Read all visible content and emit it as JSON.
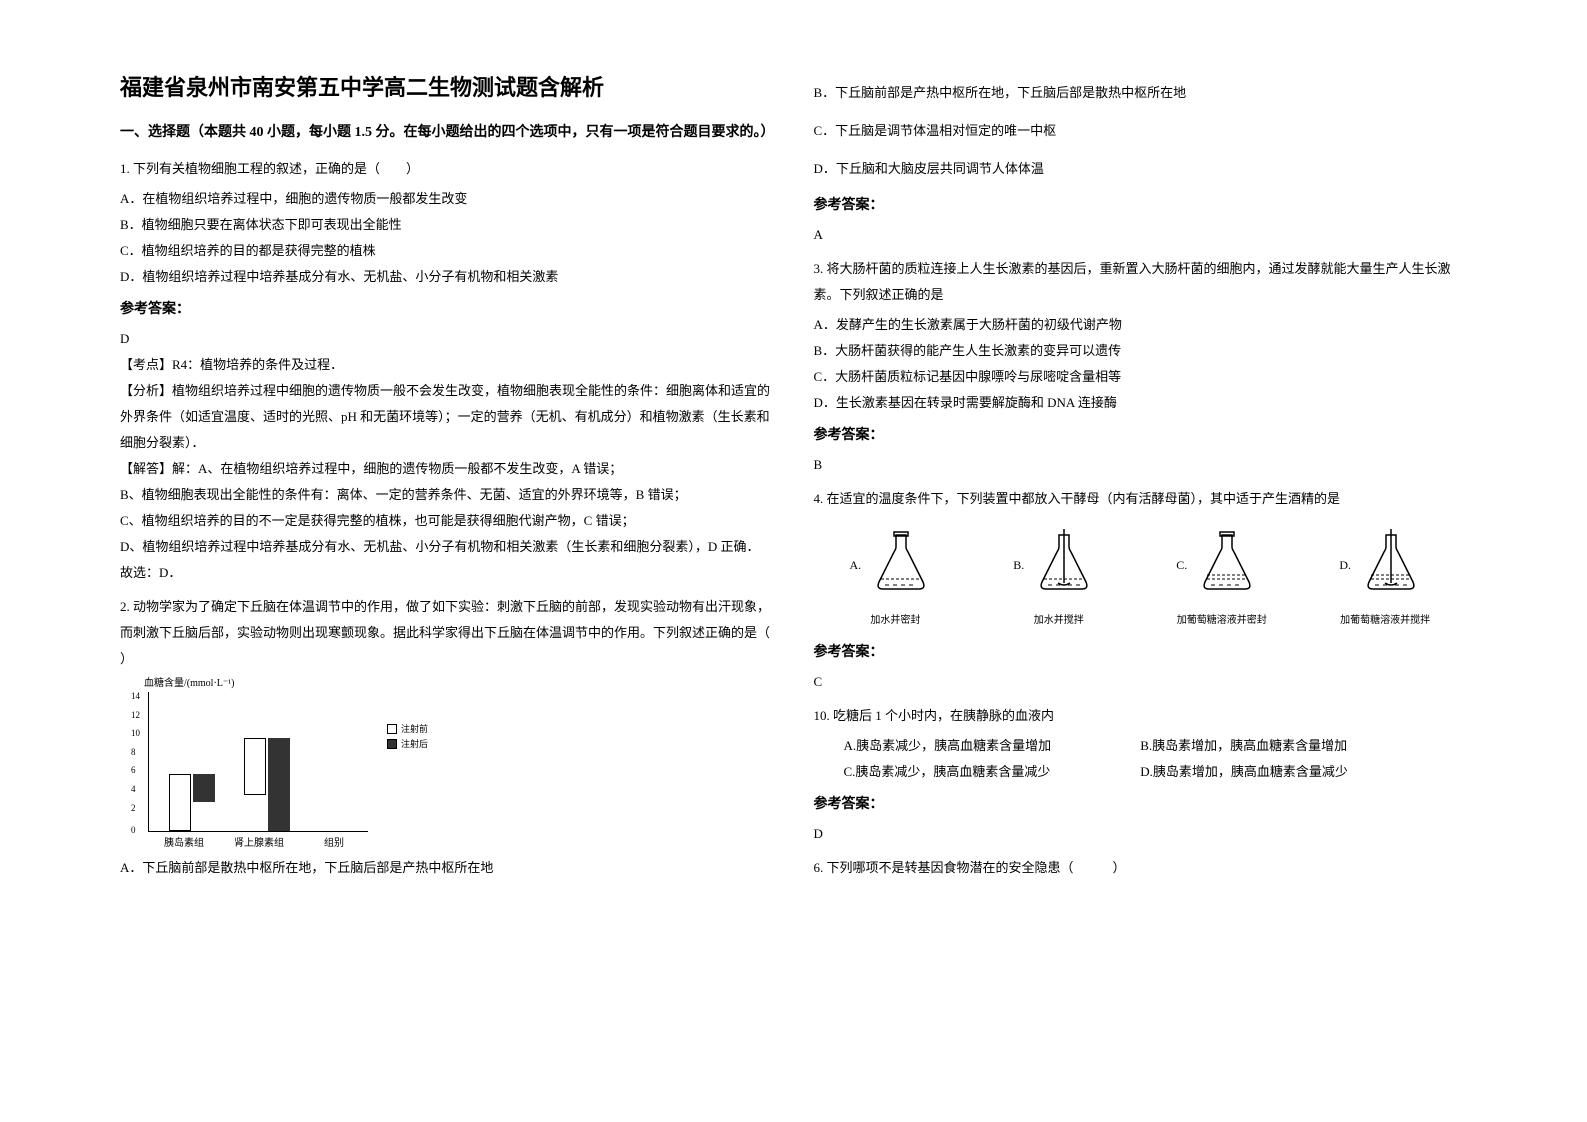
{
  "left": {
    "title": "福建省泉州市南安第五中学高二生物测试题含解析",
    "sectionHeader": "一、选择题（本题共 40 小题，每小题 1.5 分。在每小题给出的四个选项中，只有一项是符合题目要求的。）",
    "q1": {
      "stem": "1. 下列有关植物细胞工程的叙述，正确的是（　　）",
      "optA": "A．在植物组织培养过程中，细胞的遗传物质一般都发生改变",
      "optB": "B．植物细胞只要在离体状态下即可表现出全能性",
      "optC": "C．植物组织培养的目的都是获得完整的植株",
      "optD": "D．植物组织培养过程中培养基成分有水、无机盐、小分子有机物和相关激素",
      "answerLabel": "参考答案：",
      "answer": "D",
      "point": "【考点】R4：植物培养的条件及过程．",
      "analysis1": "【分析】植物组织培养过程中细胞的遗传物质一般不会发生改变，植物细胞表现全能性的条件：细胞离体和适宜的外界条件（如适宜温度、适时的光照、pH 和无菌环境等）；一定的营养（无机、有机成分）和植物激素（生长素和细胞分裂素）．",
      "analysis2": "【解答】解：A、在植物组织培养过程中，细胞的遗传物质一般都不发生改变，A 错误；",
      "analysis3": "B、植物细胞表现出全能性的条件有：离体、一定的营养条件、无菌、适宜的外界环境等，B 错误；",
      "analysis4": "C、植物组织培养的目的不一定是获得完整的植株，也可能是获得细胞代谢产物，C 错误；",
      "analysis5": "D、植物组织培养过程中培养基成分有水、无机盐、小分子有机物和相关激素（生长素和细胞分裂素），D 正确．",
      "conclusion": "故选：D．"
    },
    "q2": {
      "stem": "2. 动物学家为了确定下丘脑在体温调节中的作用，做了如下实验：刺激下丘脑的前部，发现实验动物有出汗现象，而刺激下丘脑后部，实验动物则出现寒颤现象。据此科学家得出下丘脑在体温调节中的作用。下列叙述正确的是（  ）",
      "optA": "A．下丘脑前部是散热中枢所在地，下丘脑后部是产热中枢所在地"
    },
    "chart": {
      "yTitle": "血糖含量/(mmol·L⁻¹)",
      "yTicks": [
        "14",
        "12",
        "10",
        "8",
        "6",
        "4",
        "2",
        "0"
      ],
      "xLabel1": "胰岛素组",
      "xLabel2": "肾上腺素组",
      "xLabel3": "组别",
      "legend1": "注射前",
      "legend2": "注射后",
      "bars": {
        "group1": {
          "before": 57,
          "after": 28
        },
        "group2": {
          "before": 57,
          "after": 93
        }
      },
      "colors": {
        "before": "#ffffff",
        "after": "#333333",
        "border": "#000000"
      }
    }
  },
  "right": {
    "q2cont": {
      "optB": "B．下丘脑前部是产热中枢所在地，下丘脑后部是散热中枢所在地",
      "optC": "C．下丘脑是调节体温相对恒定的唯一中枢",
      "optD": "D．下丘脑和大脑皮层共同调节人体体温",
      "answerLabel": "参考答案：",
      "answer": "A"
    },
    "q3": {
      "stem": "3. 将大肠杆菌的质粒连接上人生长激素的基因后，重新置入大肠杆菌的细胞内，通过发酵就能大量生产人生长激素。下列叙述正确的是",
      "optA": "A．发酵产生的生长激素属于大肠杆菌的初级代谢产物",
      "optB": "B．大肠杆菌获得的能产生人生长激素的变异可以遗传",
      "optC": "C．大肠杆菌质粒标记基因中腺嘌呤与尿嘧啶含量相等",
      "optD": "D．生长激素基因在转录时需要解旋酶和 DNA 连接酶",
      "answerLabel": "参考答案：",
      "answer": "B"
    },
    "q4": {
      "stem": "4. 在适宜的温度条件下，下列装置中都放入干酵母（内有活酵母菌），其中适于产生酒精的是",
      "flaskA": {
        "label": "A.",
        "caption": "加水并密封"
      },
      "flaskB": {
        "label": "B.",
        "caption": "加水并搅拌"
      },
      "flaskC": {
        "label": "C.",
        "caption": "加葡萄糖溶液并密封"
      },
      "flaskD": {
        "label": "D.",
        "caption": "加葡萄糖溶液并搅拌"
      },
      "answerLabel": "参考答案：",
      "answer": "C"
    },
    "q10": {
      "stem": "10. 吃糖后 1 个小时内，在胰静脉的血液内",
      "optA": "A.胰岛素减少，胰高血糖素含量增加",
      "optB": "B.胰岛素增加，胰高血糖素含量增加",
      "optC": "C.胰岛素减少，胰高血糖素含量减少",
      "optD": "D.胰岛素增加，胰高血糖素含量减少",
      "answerLabel": "参考答案：",
      "answer": "D"
    },
    "q6": {
      "stem": "6. 下列哪项不是转基因食物潜在的安全隐患（　　　）"
    }
  }
}
